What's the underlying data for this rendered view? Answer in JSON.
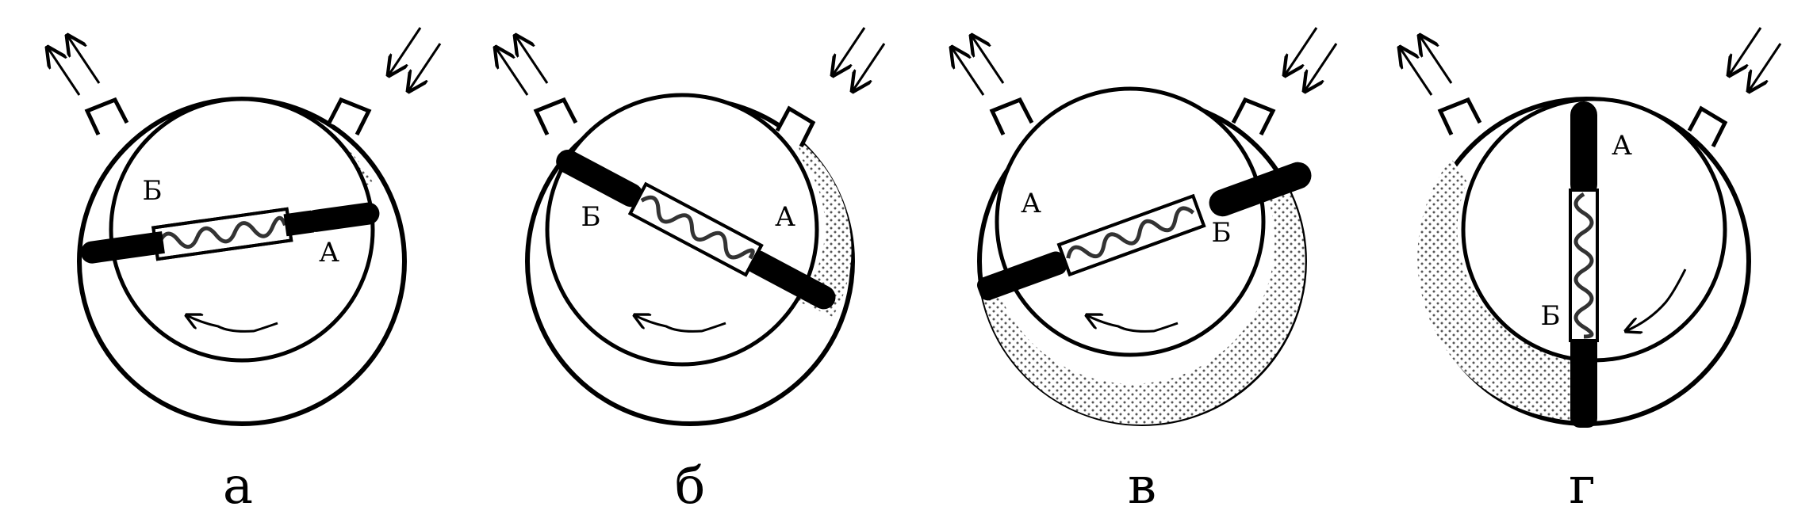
{
  "panels": [
    {
      "caption": "а",
      "label_1": "Б",
      "label_2": "А"
    },
    {
      "caption": "б",
      "label_1": "Б",
      "label_2": "А"
    },
    {
      "caption": "в",
      "label_1": "А",
      "label_2": "Б"
    },
    {
      "caption": "г",
      "label_1": "А",
      "label_2": "Б"
    }
  ]
}
